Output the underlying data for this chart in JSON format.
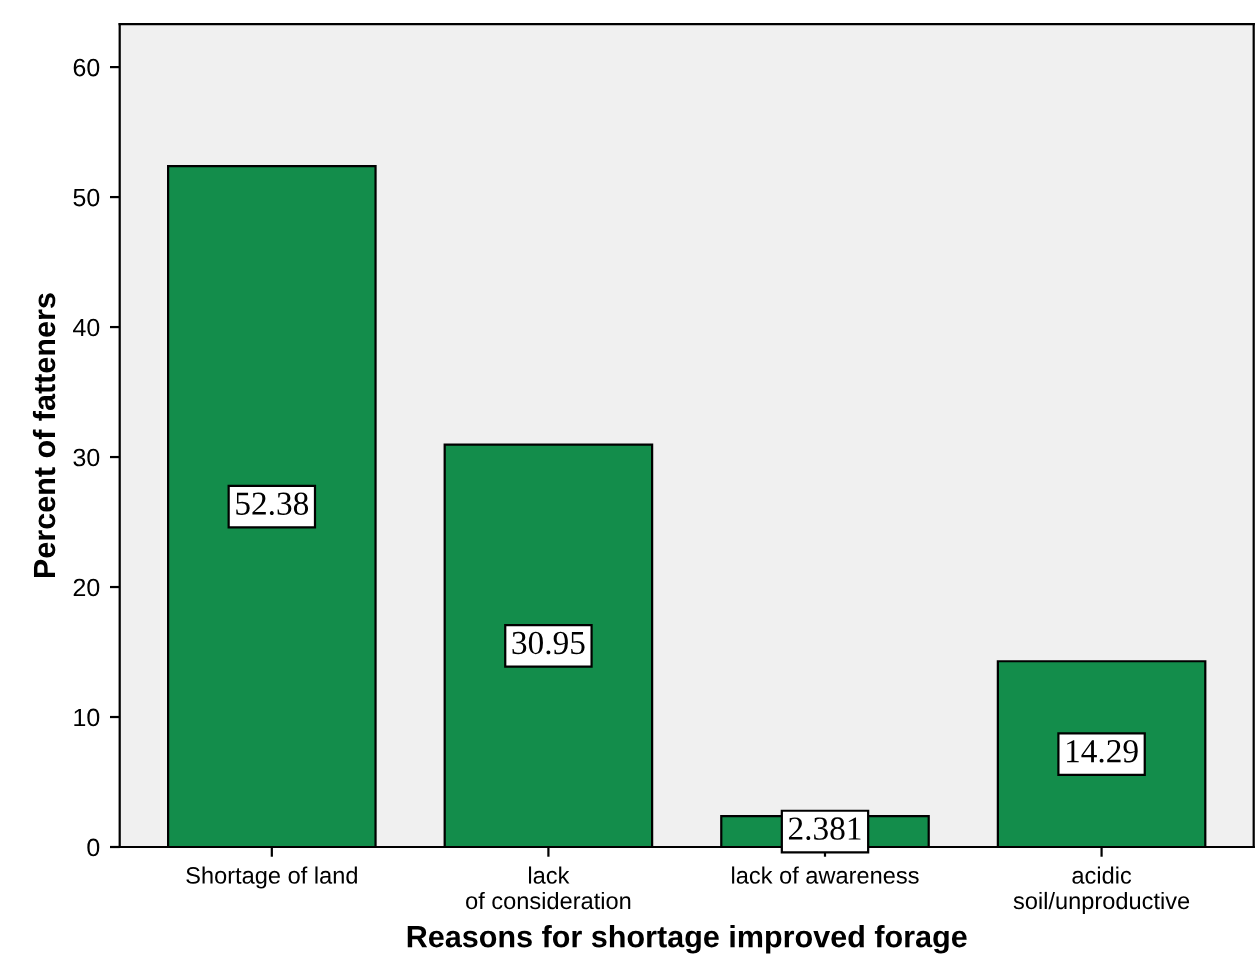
{
  "chart_data": {
    "type": "bar",
    "xlabel": "Reasons for shortage improved forage",
    "ylabel": "Percent of fatteners",
    "categories": [
      "Shortage of land",
      "lack of consideration",
      "lack of awareness",
      "acidic soil/unproductive"
    ],
    "values": [
      52.38,
      30.95,
      2.381,
      14.29
    ],
    "color": "#138d4b",
    "ylim": [
      0,
      63.3
    ],
    "yticks": [
      0,
      10,
      20,
      30,
      40,
      50,
      60
    ],
    "grid": false,
    "data_labels": true
  }
}
